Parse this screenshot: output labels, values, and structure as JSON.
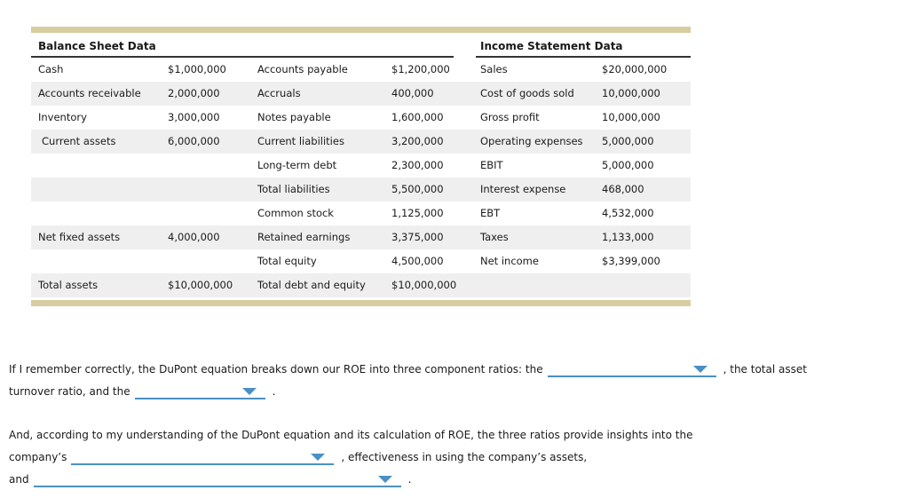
{
  "colors": {
    "accent_blue": "#4a90c4",
    "gold_bar": "#d8cda0",
    "row_stripe": "#efefef",
    "header_rule": "#333333"
  },
  "table": {
    "bs_header": "Balance Sheet Data",
    "is_header": "Income Statement Data",
    "rows": [
      {
        "c0": "Cash",
        "c1": "$1,000,000",
        "c2": "Accounts payable",
        "c3": "$1,200,000",
        "c4": "Sales",
        "c5": "$20,000,000"
      },
      {
        "c0": "Accounts receivable",
        "c1": "2,000,000",
        "c2": "Accruals",
        "c3": "400,000",
        "c4": "Cost of goods sold",
        "c5": "10,000,000"
      },
      {
        "c0": "Inventory",
        "c1": "3,000,000",
        "c2": "Notes payable",
        "c3": "1,600,000",
        "c4": "Gross profit",
        "c5": "10,000,000"
      },
      {
        "c0": "Current assets",
        "c1": "6,000,000",
        "c2": "Current liabilities",
        "c3": "3,200,000",
        "c4": "Operating expenses",
        "c5": "5,000,000"
      },
      {
        "c0": "",
        "c1": "",
        "c2": "Long-term debt",
        "c3": "2,300,000",
        "c4": "EBIT",
        "c5": "5,000,000"
      },
      {
        "c0": "",
        "c1": "",
        "c2": "Total liabilities",
        "c3": "5,500,000",
        "c4": "Interest expense",
        "c5": "468,000"
      },
      {
        "c0": "",
        "c1": "",
        "c2": "Common stock",
        "c3": "1,125,000",
        "c4": "EBT",
        "c5": "4,532,000"
      },
      {
        "c0": "Net fixed assets",
        "c1": "4,000,000",
        "c2": "Retained earnings",
        "c3": "3,375,000",
        "c4": "Taxes",
        "c5": "1,133,000"
      },
      {
        "c0": "",
        "c1": "",
        "c2": "Total equity",
        "c3": "4,500,000",
        "c4": "Net income",
        "c5": "$3,399,000"
      },
      {
        "c0": "Total assets",
        "c1": "$10,000,000",
        "c2": "Total debt and equity",
        "c3": "$10,000,000",
        "c4": "",
        "c5": ""
      }
    ]
  },
  "question": {
    "p1": {
      "l1_pre": "If I remember correctly, the DuPont equation breaks down our ROE into three component ratios: the",
      "l1_post": ", the total asset",
      "l2_pre": "turnover ratio, and the",
      "l2_post": "."
    },
    "p2": {
      "l1": "And, according to my understanding of the DuPont equation and its calculation of ROE, the three ratios provide insights into the",
      "l2_pre": "company’s",
      "l2_post": ", effectiveness in using the company’s assets,",
      "l3_pre": "and",
      "l3_post": "."
    }
  }
}
